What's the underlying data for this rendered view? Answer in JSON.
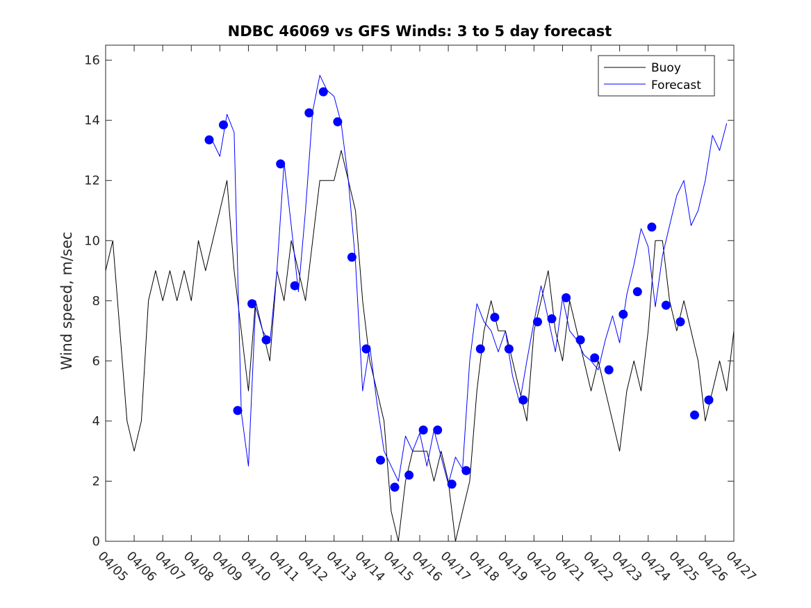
{
  "chart_data": {
    "type": "line",
    "title": "NDBC 46069 vs GFS Winds: 3 to 5 day forecast",
    "xlabel": "",
    "ylabel": "Wind speed, m/sec",
    "x_unit": "date",
    "xlim": [
      "04/05",
      "04/27"
    ],
    "ylim": [
      0,
      16.5
    ],
    "x_ticks": [
      "04/05",
      "04/06",
      "04/07",
      "04/08",
      "04/09",
      "04/10",
      "04/11",
      "04/12",
      "04/13",
      "04/14",
      "04/15",
      "04/16",
      "04/17",
      "04/18",
      "04/19",
      "04/20",
      "04/21",
      "04/22",
      "04/23",
      "04/24",
      "04/25",
      "04/26",
      "04/27"
    ],
    "y_ticks": [
      0,
      2,
      4,
      6,
      8,
      10,
      12,
      14,
      16
    ],
    "grid": false,
    "legend": {
      "position": "top-right",
      "entries": [
        "Buoy",
        "Forecast"
      ]
    },
    "colors": {
      "buoy": "#000000",
      "forecast": "#0000ff",
      "axis": "#262626"
    },
    "series": [
      {
        "name": "Buoy",
        "style": "line",
        "x": [
          "04/05 00:00",
          "04/05 06:00",
          "04/05 12:00",
          "04/05 18:00",
          "04/06 00:00",
          "04/06 06:00",
          "04/06 12:00",
          "04/06 18:00",
          "04/07 00:00",
          "04/07 06:00",
          "04/07 12:00",
          "04/07 18:00",
          "04/08 00:00",
          "04/08 06:00",
          "04/08 12:00",
          "04/08 18:00",
          "04/09 00:00",
          "04/09 06:00",
          "04/09 12:00",
          "04/09 18:00",
          "04/10 00:00",
          "04/10 06:00",
          "04/10 12:00",
          "04/10 18:00",
          "04/11 00:00",
          "04/11 06:00",
          "04/11 12:00",
          "04/11 18:00",
          "04/12 00:00",
          "04/12 06:00",
          "04/12 12:00",
          "04/12 18:00",
          "04/13 00:00",
          "04/13 06:00",
          "04/13 12:00",
          "04/13 18:00",
          "04/14 00:00",
          "04/14 06:00",
          "04/14 12:00",
          "04/14 18:00",
          "04/15 00:00",
          "04/15 06:00",
          "04/15 12:00",
          "04/15 18:00",
          "04/16 00:00",
          "04/16 06:00",
          "04/16 12:00",
          "04/16 18:00",
          "04/17 00:00",
          "04/17 06:00",
          "04/17 12:00",
          "04/17 18:00",
          "04/18 00:00",
          "04/18 06:00",
          "04/18 12:00",
          "04/18 18:00",
          "04/19 00:00",
          "04/19 06:00",
          "04/19 12:00",
          "04/19 18:00",
          "04/20 00:00",
          "04/20 06:00",
          "04/20 12:00",
          "04/20 18:00",
          "04/21 00:00",
          "04/21 06:00",
          "04/21 12:00",
          "04/21 18:00",
          "04/22 00:00",
          "04/22 06:00",
          "04/22 12:00",
          "04/22 18:00",
          "04/23 00:00",
          "04/23 06:00",
          "04/23 12:00",
          "04/23 18:00",
          "04/24 00:00",
          "04/24 06:00",
          "04/24 12:00",
          "04/24 18:00",
          "04/25 00:00",
          "04/25 06:00",
          "04/25 12:00",
          "04/25 18:00",
          "04/26 00:00",
          "04/26 06:00",
          "04/26 12:00",
          "04/26 18:00",
          "04/27 00:00"
        ],
        "y": [
          9,
          10,
          7,
          4,
          3,
          4,
          8,
          9,
          8,
          9,
          8,
          9,
          8,
          10,
          9,
          10,
          11,
          12,
          9,
          7,
          5,
          8,
          7,
          6,
          9,
          8,
          10,
          9,
          8,
          10,
          12,
          12,
          12,
          13,
          12,
          11,
          8,
          6,
          5,
          4,
          1,
          0,
          2,
          3,
          3,
          3,
          2,
          3,
          2,
          0,
          1,
          2,
          5,
          7,
          8,
          7,
          7,
          6,
          5,
          4,
          7,
          8,
          9,
          7,
          6,
          8,
          7,
          6,
          5,
          6,
          5,
          4,
          3,
          5,
          6,
          5,
          7,
          10,
          10,
          8,
          7,
          8,
          7,
          6,
          4,
          5,
          6,
          5,
          7
        ]
      },
      {
        "name": "Forecast",
        "style": "line",
        "x": [
          "04/08 18:00",
          "04/09 00:00",
          "04/09 06:00",
          "04/09 12:00",
          "04/09 18:00",
          "04/10 00:00",
          "04/10 06:00",
          "04/10 12:00",
          "04/10 18:00",
          "04/11 00:00",
          "04/11 06:00",
          "04/11 12:00",
          "04/11 18:00",
          "04/12 00:00",
          "04/12 06:00",
          "04/12 12:00",
          "04/12 18:00",
          "04/13 00:00",
          "04/13 06:00",
          "04/13 12:00",
          "04/13 18:00",
          "04/14 00:00",
          "04/14 06:00",
          "04/14 12:00",
          "04/14 18:00",
          "04/15 00:00",
          "04/15 06:00",
          "04/15 12:00",
          "04/15 18:00",
          "04/16 00:00",
          "04/16 06:00",
          "04/16 12:00",
          "04/16 18:00",
          "04/17 00:00",
          "04/17 06:00",
          "04/17 12:00",
          "04/17 18:00",
          "04/18 00:00",
          "04/18 06:00",
          "04/18 12:00",
          "04/18 18:00",
          "04/19 00:00",
          "04/19 06:00",
          "04/19 12:00",
          "04/19 18:00",
          "04/20 00:00",
          "04/20 06:00",
          "04/20 12:00",
          "04/20 18:00",
          "04/21 00:00",
          "04/21 06:00",
          "04/21 12:00",
          "04/21 18:00",
          "04/22 00:00",
          "04/22 06:00",
          "04/22 12:00",
          "04/22 18:00",
          "04/23 00:00",
          "04/23 06:00",
          "04/23 12:00",
          "04/23 18:00",
          "04/24 00:00",
          "04/24 06:00",
          "04/24 12:00",
          "04/24 18:00",
          "04/25 00:00",
          "04/25 06:00",
          "04/25 12:00",
          "04/25 18:00",
          "04/26 00:00",
          "04/26 06:00",
          "04/26 12:00",
          "04/26 18:00"
        ],
        "y": [
          13.3,
          12.8,
          14.2,
          13.6,
          4.3,
          2.5,
          7.8,
          7.0,
          6.6,
          9.0,
          12.6,
          10.5,
          8.3,
          11.0,
          14.3,
          15.5,
          15.0,
          14.8,
          13.9,
          12.0,
          9.3,
          5.0,
          6.5,
          4.6,
          3.0,
          2.5,
          2.0,
          3.5,
          3.0,
          3.6,
          2.5,
          3.7,
          2.8,
          1.9,
          2.8,
          2.4,
          6.0,
          7.9,
          7.3,
          7.0,
          6.3,
          7.0,
          5.5,
          4.6,
          6.0,
          7.3,
          8.5,
          7.4,
          6.3,
          8.1,
          7.0,
          6.7,
          6.2,
          6.0,
          5.7,
          6.7,
          7.5,
          6.6,
          8.2,
          9.2,
          10.4,
          9.8,
          7.8,
          9.5,
          10.5,
          11.5,
          12.0,
          10.5,
          11.0,
          12.0,
          13.5,
          13.0,
          13.9
        ]
      }
    ],
    "markers": {
      "name": "Forecast",
      "style": "filled-circle",
      "x": [
        "04/08 15:00",
        "04/09 03:00",
        "04/09 15:00",
        "04/10 03:00",
        "04/10 15:00",
        "04/11 03:00",
        "04/11 15:00",
        "04/12 03:00",
        "04/12 15:00",
        "04/13 03:00",
        "04/13 15:00",
        "04/14 03:00",
        "04/14 15:00",
        "04/15 03:00",
        "04/15 15:00",
        "04/16 03:00",
        "04/16 15:00",
        "04/17 03:00",
        "04/17 15:00",
        "04/18 03:00",
        "04/18 15:00",
        "04/19 03:00",
        "04/19 15:00",
        "04/20 03:00",
        "04/20 15:00",
        "04/21 03:00",
        "04/21 15:00",
        "04/22 03:00",
        "04/22 15:00",
        "04/23 03:00",
        "04/23 15:00",
        "04/24 03:00",
        "04/24 15:00",
        "04/25 03:00",
        "04/25 15:00",
        "04/26 03:00"
      ],
      "y": [
        13.35,
        13.85,
        4.35,
        7.9,
        6.7,
        12.55,
        8.5,
        14.25,
        14.95,
        13.95,
        9.45,
        6.4,
        2.7,
        1.8,
        2.2,
        3.7,
        3.7,
        1.9,
        2.35,
        6.4,
        7.45,
        6.4,
        4.7,
        7.3,
        7.4,
        8.1,
        6.7,
        6.1,
        5.7,
        7.55,
        8.3,
        10.45,
        7.85,
        7.3,
        4.2,
        4.7
      ]
    }
  }
}
